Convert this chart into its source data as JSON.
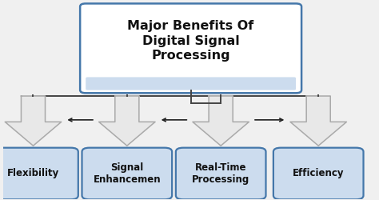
{
  "title": "Major Benefits Of\nDigital Signal\nProcessing",
  "title_fontsize": 11.5,
  "title_color": "#111111",
  "box_fill_light": "#ccdcee",
  "box_fill_white": "#ffffff",
  "box_border": "#4477aa",
  "background_color": "#f0f0f0",
  "labels": [
    "Flexibility",
    "Signal\nEnhancemen",
    "Real-Time\nProcessing",
    "Efficiency"
  ],
  "label_fontsize": 8.5,
  "chevron_color_fill": "#e8e8e8",
  "chevron_color_edge": "#aaaaaa",
  "connector_color": "#444444",
  "arrow_color": "#222222"
}
